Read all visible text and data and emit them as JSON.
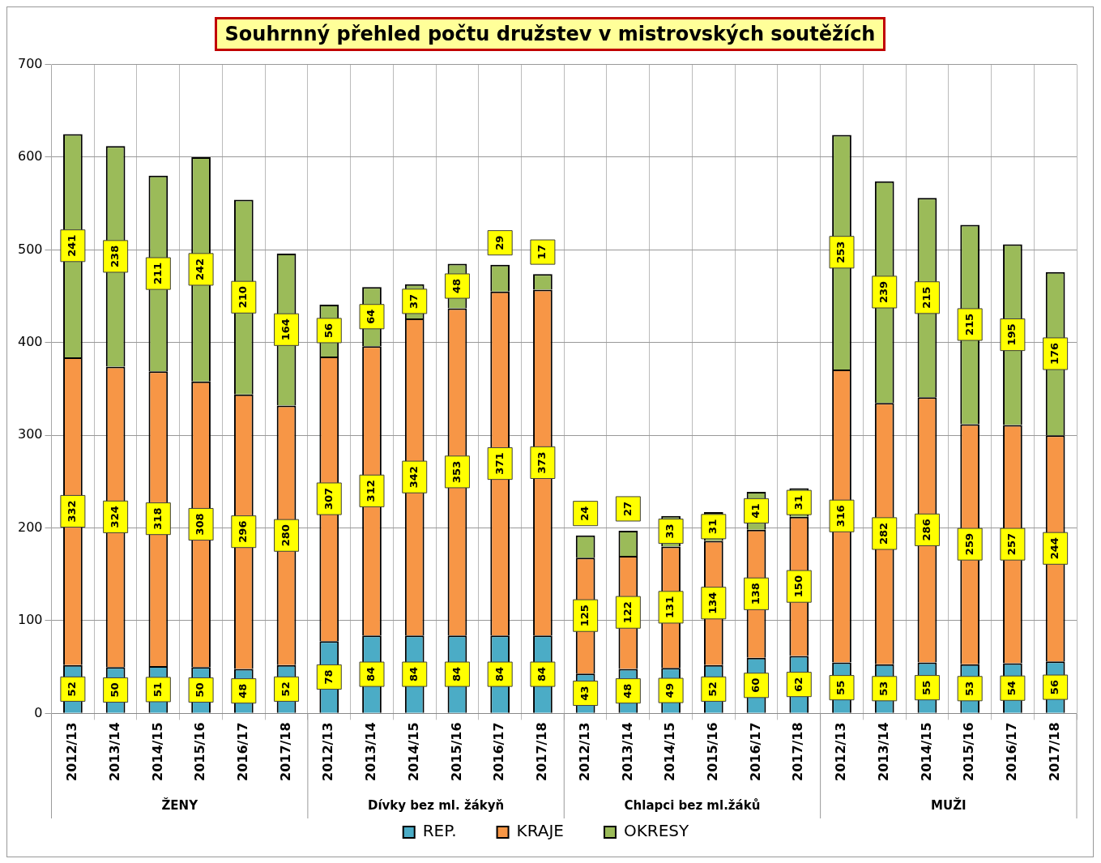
{
  "chart_data": {
    "type": "bar",
    "title": "Souhrnný přehled počtu družstev v mistrovských soutěžích",
    "stacked": true,
    "data_labels": true,
    "grid": true,
    "legend": "bottom",
    "categories": [
      "2012/13",
      "2013/14",
      "2014/15",
      "2015/16",
      "2016/17",
      "2017/18",
      "2012/13",
      "2013/14",
      "2014/15",
      "2015/16",
      "2016/17",
      "2017/18",
      "2012/13",
      "2013/14",
      "2014/15",
      "2015/16",
      "2016/17",
      "2017/18",
      "2012/13",
      "2013/14",
      "2014/15",
      "2015/16",
      "2016/17",
      "2017/18"
    ],
    "annotations": [
      "ŽENY",
      "Dívky bez ml. žákyň",
      "Chlapci bez ml.žáků",
      "MUŽI"
    ],
    "ylim": [
      0,
      700
    ],
    "yticks": [
      0,
      100,
      200,
      300,
      400,
      500,
      600,
      700
    ],
    "series": [
      {
        "name": "REP.",
        "color": "#4bacc6",
        "values": [
          52,
          50,
          51,
          50,
          48,
          52,
          78,
          84,
          84,
          84,
          84,
          84,
          43,
          48,
          49,
          52,
          60,
          62,
          55,
          53,
          55,
          53,
          54,
          56
        ]
      },
      {
        "name": "KRAJE",
        "color": "#f79646",
        "values": [
          332,
          324,
          318,
          308,
          296,
          280,
          307,
          312,
          342,
          353,
          371,
          373,
          125,
          122,
          131,
          134,
          138,
          150,
          316,
          282,
          286,
          259,
          257,
          244
        ]
      },
      {
        "name": "OKRESY",
        "color": "#9bbb59",
        "values": [
          241,
          238,
          211,
          242,
          210,
          164,
          56,
          64,
          37,
          48,
          29,
          17,
          24,
          27,
          33,
          31,
          41,
          31,
          253,
          239,
          215,
          215,
          195,
          176
        ]
      }
    ]
  }
}
